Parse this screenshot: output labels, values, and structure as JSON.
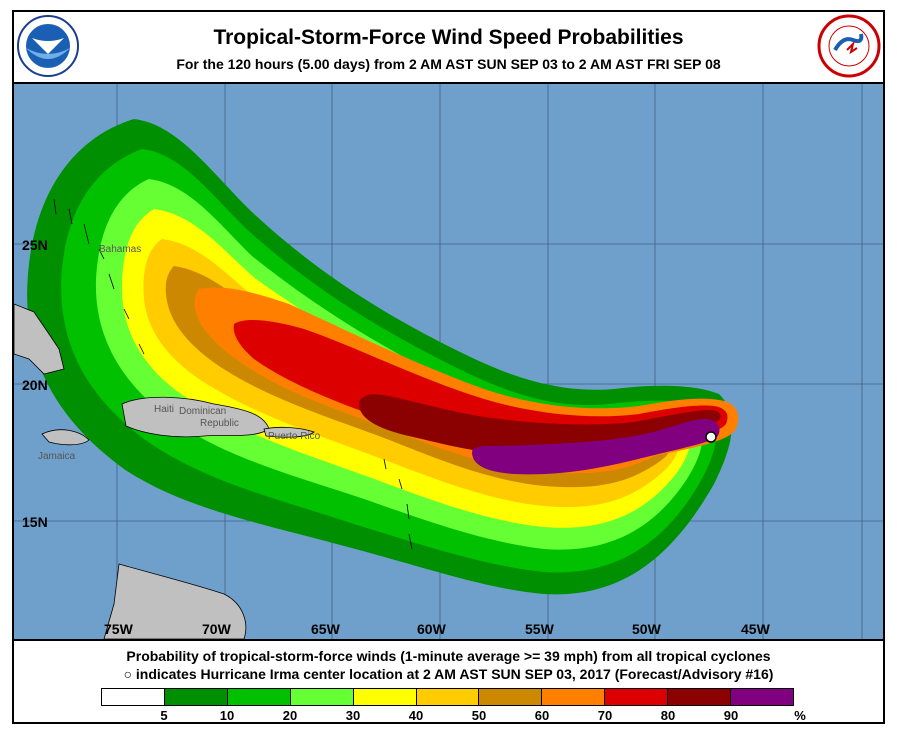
{
  "header": {
    "title": "Tropical-Storm-Force Wind Speed Probabilities",
    "subtitle": "For the 120 hours (5.00 days) from 2 AM AST SUN SEP 03 to 2 AM AST FRI SEP 08"
  },
  "map": {
    "longitude_labels": [
      "75W",
      "70W",
      "65W",
      "60W",
      "55W",
      "50W",
      "45W"
    ],
    "latitude_labels": [
      "25N",
      "20N",
      "15N"
    ],
    "places": [
      "Bahamas",
      "Haiti",
      "Dominican",
      "Republic",
      "Puerto Rico",
      "Jamaica"
    ],
    "ocean_color": "#6fa0cc",
    "land_color": "#c0c0c0",
    "storm_marker": "hurricane-center-icon"
  },
  "footer": {
    "line1": "Probability of tropical-storm-force winds (1-minute average >= 39 mph) from all tropical cyclones",
    "line2_symbol": "○",
    "line2_text": "indicates Hurricane Irma center location at 2 AM AST SUN SEP 03, 2017 (Forecast/Advisory #16)"
  },
  "legend": {
    "colors": [
      "#ffffff",
      "#008f00",
      "#00c000",
      "#66ff33",
      "#ffff00",
      "#ffcc00",
      "#cc8800",
      "#ff8000",
      "#dd0000",
      "#8b0000",
      "#800080"
    ],
    "tick_labels": [
      "5",
      "10",
      "20",
      "30",
      "40",
      "50",
      "60",
      "70",
      "80",
      "90",
      "%"
    ]
  }
}
